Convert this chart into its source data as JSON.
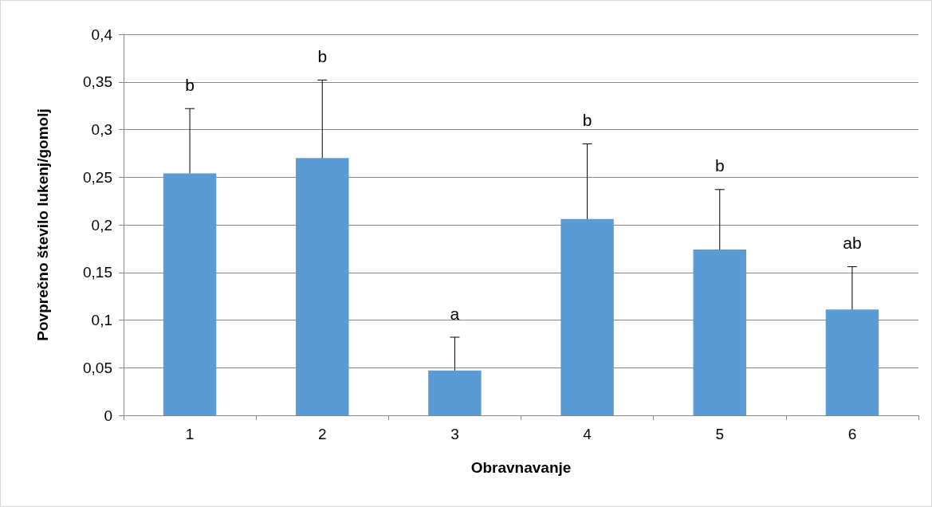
{
  "chart_data": {
    "type": "bar",
    "xlabel": "Obravnavanje",
    "ylabel": "Povprečno število lukenj/gomolj",
    "categories": [
      "1",
      "2",
      "3",
      "4",
      "5",
      "6"
    ],
    "values": [
      0.254,
      0.27,
      0.047,
      0.206,
      0.174,
      0.111
    ],
    "errors": [
      [
        0.254,
        0.322
      ],
      [
        0.27,
        0.352
      ],
      [
        0.047,
        0.082
      ],
      [
        0.206,
        0.285
      ],
      [
        0.174,
        0.237
      ],
      [
        0.111,
        0.156
      ]
    ],
    "color": "#5b9bd5",
    "ylim": [
      0,
      0.4
    ],
    "yticks": [
      0,
      {
        "value": 0.05,
        "label": "0,05"
      },
      {
        "value": 0.1,
        "label": "0,1"
      },
      {
        "value": 0.15,
        "label": "0,15"
      },
      {
        "value": 0.2,
        "label": "0,2"
      },
      {
        "value": 0.25,
        "label": "0,25"
      },
      {
        "value": 0.3,
        "label": "0,3"
      },
      {
        "value": 0.35,
        "label": "0,35"
      },
      {
        "value": 0.4,
        "label": "0,4"
      }
    ],
    "grid": "y",
    "annotations": [
      "b",
      "b",
      "a",
      "b",
      "b",
      "ab"
    ]
  }
}
